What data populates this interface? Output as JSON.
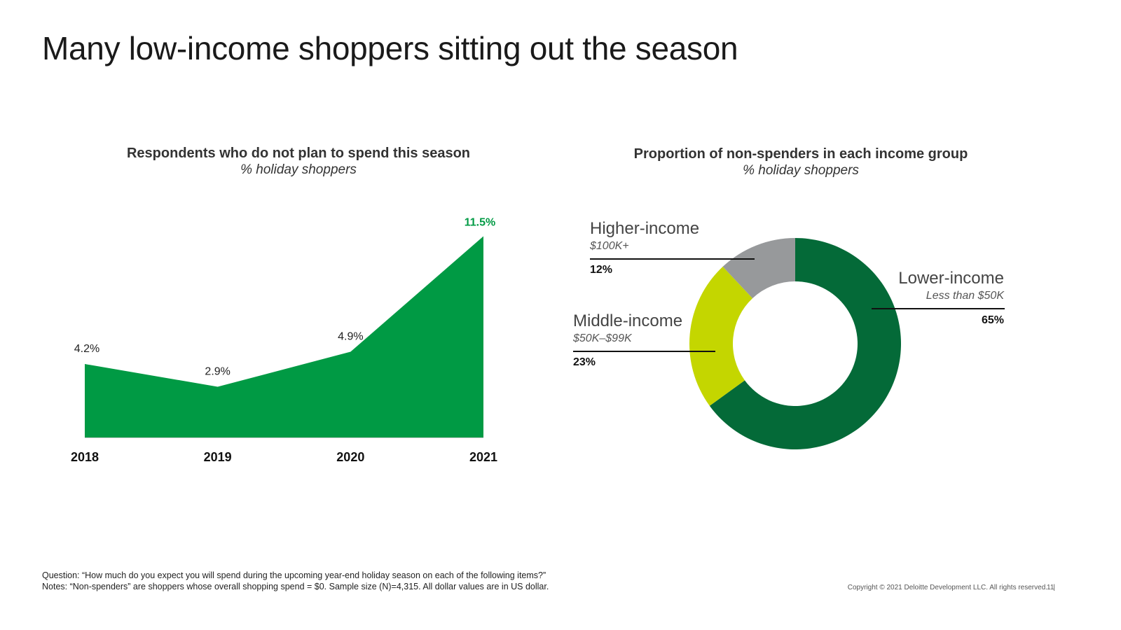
{
  "title": "Many low-income shoppers sitting out the season",
  "chart_data": [
    {
      "type": "area",
      "title": "Respondents who do not plan to spend this season",
      "subtitle": "% holiday shoppers",
      "categories": [
        "2018",
        "2019",
        "2020",
        "2021"
      ],
      "values": [
        4.2,
        2.9,
        4.9,
        11.5
      ],
      "labels": [
        "4.2%",
        "2.9%",
        "4.9%",
        "11.5%"
      ],
      "ylim": [
        0,
        12
      ],
      "color": "#009A44",
      "highlight_color": "#009A44"
    },
    {
      "type": "pie",
      "title": "Proportion of non-spenders in each income group",
      "subtitle": "% holiday shoppers",
      "segments": [
        {
          "name": "Lower-income",
          "range": "Less than $50K",
          "value": 65,
          "label": "65%",
          "color": "#046A38"
        },
        {
          "name": "Middle-income",
          "range": "$50K–$99K",
          "value": 23,
          "label": "23%",
          "color": "#C4D600"
        },
        {
          "name": "Higher-income",
          "range": "$100K+",
          "value": 12,
          "label": "12%",
          "color": "#97999B"
        }
      ]
    }
  ],
  "footnotes": {
    "question": "Question: “How much do you expect you will spend during the upcoming year-end holiday season on each of the following items?”",
    "notes": "Notes: “Non-spenders” are shoppers whose overall shopping spend = $0. Sample size (N)=4,315. All dollar values are in US dollar."
  },
  "copyright": "Copyright © 2021 Deloitte Development LLC. All rights reserved.",
  "separator": "|",
  "page_number": "11"
}
